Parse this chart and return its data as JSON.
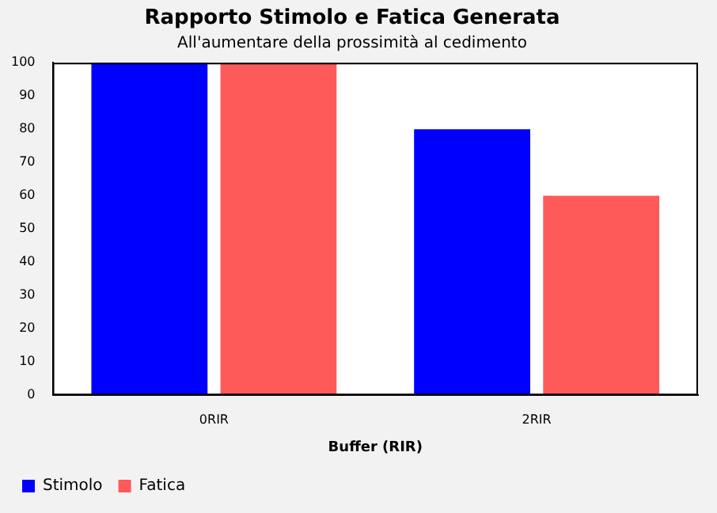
{
  "chart_data": {
    "type": "bar",
    "title": "Rapporto Stimolo e Fatica Generata",
    "subtitle": "All'aumentare della prossimità al cedimento",
    "xlabel": "Buffer (RIR)",
    "categories": [
      "0RIR",
      "2RIR"
    ],
    "series": [
      {
        "name": "Stimolo",
        "color": "#0000ff",
        "values": [
          100,
          80
        ]
      },
      {
        "name": "Fatica",
        "color": "#ff5a5a",
        "values": [
          100,
          60
        ]
      }
    ],
    "ylim": [
      0,
      100
    ],
    "yticks": [
      0,
      10,
      20,
      30,
      40,
      50,
      60,
      70,
      80,
      90,
      100
    ],
    "grid": false,
    "legend": "bottom left"
  }
}
